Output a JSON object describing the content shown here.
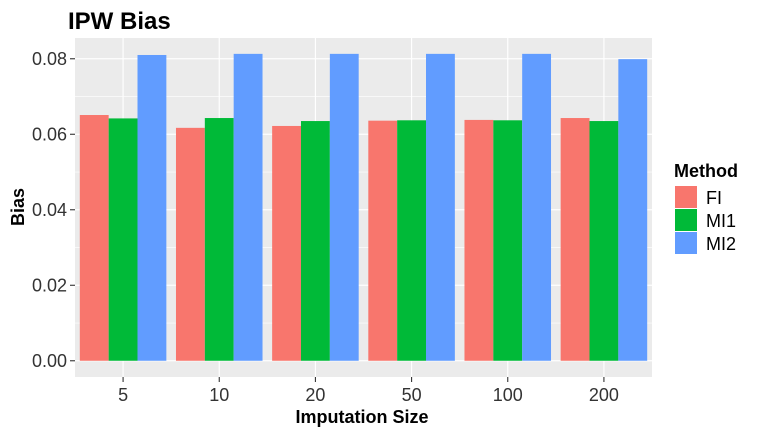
{
  "chart_data": {
    "type": "bar",
    "title": "IPW Bias",
    "xlabel": "Imputation Size",
    "ylabel": "Bias",
    "categories": [
      "5",
      "10",
      "20",
      "50",
      "100",
      "200"
    ],
    "series": [
      {
        "name": "FI",
        "color": "#F8766D",
        "values": [
          0.0651,
          0.0617,
          0.0622,
          0.0636,
          0.0638,
          0.0643
        ]
      },
      {
        "name": "MI1",
        "color": "#00BA38",
        "values": [
          0.0642,
          0.0643,
          0.0635,
          0.0637,
          0.0637,
          0.0635
        ]
      },
      {
        "name": "MI2",
        "color": "#619CFF",
        "values": [
          0.081,
          0.0813,
          0.0813,
          0.0813,
          0.0813,
          0.0799
        ]
      }
    ],
    "ylim": [
      -0.0043,
      0.0855
    ],
    "yticks": [
      0.0,
      0.02,
      0.04,
      0.06,
      0.08
    ],
    "ytick_labels": [
      "0.00",
      "0.02",
      "0.04",
      "0.06",
      "0.08"
    ],
    "legend_title": "Method",
    "legend_position": "right",
    "grid": true,
    "panel_background": "#EBEBEB"
  }
}
